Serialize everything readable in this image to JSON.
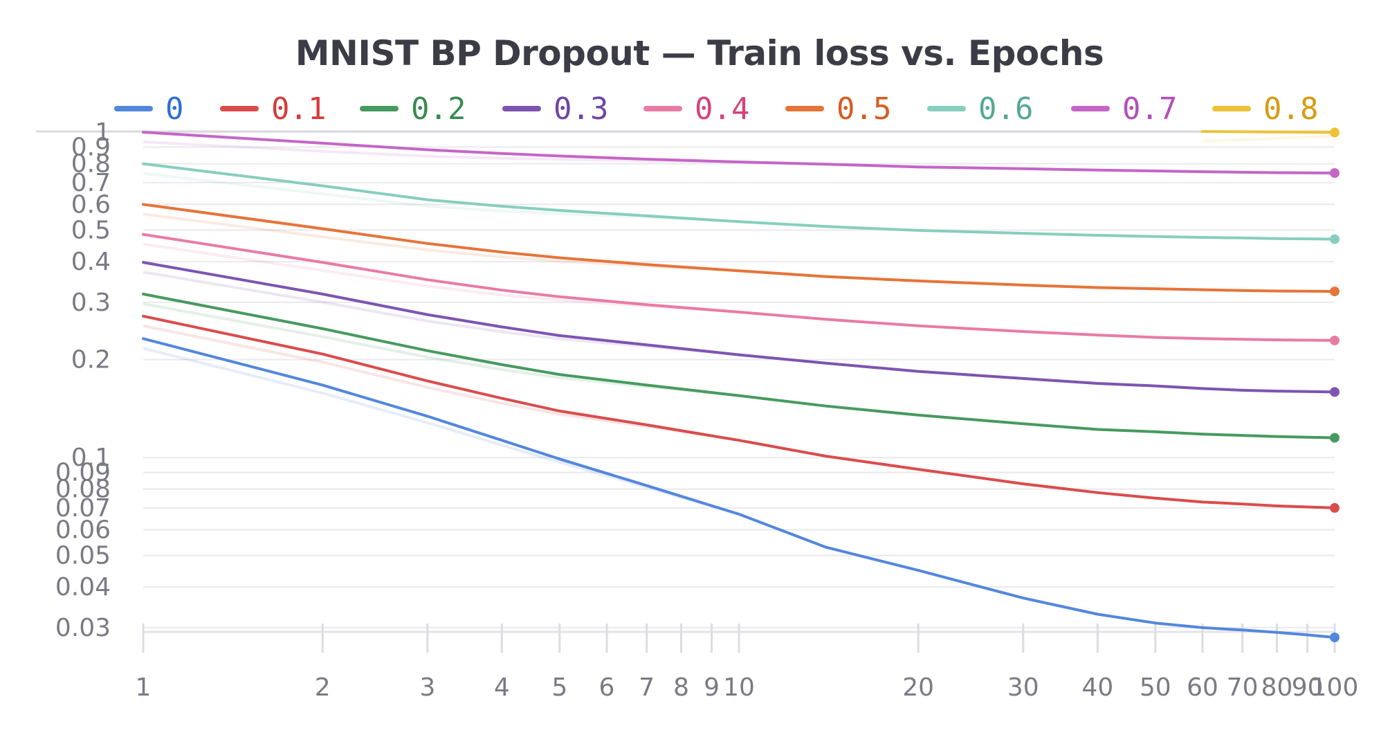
{
  "chart_data": {
    "type": "line",
    "title": "MNIST BP Dropout — Train loss vs. Epochs",
    "xlabel": "",
    "ylabel": "",
    "x_scale": "log",
    "y_scale": "log",
    "xlim": [
      1,
      100
    ],
    "ylim": [
      0.028,
      1.0
    ],
    "legend_position": "top",
    "grid": true,
    "x_ticks": [
      {
        "value": 1,
        "label": "1"
      },
      {
        "value": 2,
        "label": "2"
      },
      {
        "value": 3,
        "label": "3"
      },
      {
        "value": 4,
        "label": "4"
      },
      {
        "value": 5,
        "label": "5"
      },
      {
        "value": 6,
        "label": "6"
      },
      {
        "value": 7,
        "label": "7"
      },
      {
        "value": 8,
        "label": "8"
      },
      {
        "value": 9,
        "label": "9"
      },
      {
        "value": 10,
        "label": "10"
      },
      {
        "value": 20,
        "label": "20"
      },
      {
        "value": 30,
        "label": "30"
      },
      {
        "value": 40,
        "label": "40"
      },
      {
        "value": 50,
        "label": "50"
      },
      {
        "value": 60,
        "label": "60"
      },
      {
        "value": 70,
        "label": "70"
      },
      {
        "value": 80,
        "label": "80"
      },
      {
        "value": 90,
        "label": "90"
      },
      {
        "value": 100,
        "label": "100"
      }
    ],
    "y_ticks": [
      {
        "value": 1,
        "label": "1"
      },
      {
        "value": 0.9,
        "label": "0.9"
      },
      {
        "value": 0.8,
        "label": "0.8"
      },
      {
        "value": 0.7,
        "label": "0.7"
      },
      {
        "value": 0.6,
        "label": "0.6"
      },
      {
        "value": 0.5,
        "label": "0.5"
      },
      {
        "value": 0.4,
        "label": "0.4"
      },
      {
        "value": 0.3,
        "label": "0.3"
      },
      {
        "value": 0.2,
        "label": "0.2"
      },
      {
        "value": 0.1,
        "label": "0.1"
      },
      {
        "value": 0.09,
        "label": "0.09"
      },
      {
        "value": 0.08,
        "label": "0.08"
      },
      {
        "value": 0.07,
        "label": "0.07"
      },
      {
        "value": 0.06,
        "label": "0.06"
      },
      {
        "value": 0.05,
        "label": "0.05"
      },
      {
        "value": 0.04,
        "label": "0.04"
      },
      {
        "value": 0.03,
        "label": "0.03"
      }
    ],
    "x": [
      1,
      2,
      3,
      4,
      5,
      7,
      10,
      14,
      20,
      30,
      40,
      50,
      60,
      70,
      80,
      90,
      100
    ],
    "series": [
      {
        "name": "0",
        "color": "#5387dd",
        "values": [
          0.232,
          0.167,
          0.134,
          0.113,
          0.099,
          0.082,
          0.067,
          0.053,
          0.045,
          0.037,
          0.033,
          0.031,
          0.03,
          0.0295,
          0.029,
          0.0285,
          0.028
        ]
      },
      {
        "name": "0.1",
        "color": "#da4c4c",
        "values": [
          0.272,
          0.208,
          0.172,
          0.152,
          0.139,
          0.126,
          0.113,
          0.101,
          0.092,
          0.083,
          0.078,
          0.075,
          0.073,
          0.072,
          0.071,
          0.0705,
          0.07
        ]
      },
      {
        "name": "0.2",
        "color": "#479a5f",
        "values": [
          0.318,
          0.249,
          0.213,
          0.193,
          0.18,
          0.167,
          0.155,
          0.144,
          0.135,
          0.127,
          0.122,
          0.12,
          0.118,
          0.117,
          0.116,
          0.1155,
          0.115
        ]
      },
      {
        "name": "0.3",
        "color": "#7d54b2",
        "values": [
          0.398,
          0.318,
          0.275,
          0.252,
          0.237,
          0.222,
          0.207,
          0.195,
          0.184,
          0.175,
          0.169,
          0.166,
          0.163,
          0.161,
          0.16,
          0.1595,
          0.159
        ]
      },
      {
        "name": "0.4",
        "color": "#e87ba4",
        "values": [
          0.485,
          0.398,
          0.352,
          0.327,
          0.312,
          0.295,
          0.28,
          0.266,
          0.254,
          0.244,
          0.238,
          0.234,
          0.232,
          0.231,
          0.23,
          0.2295,
          0.229
        ]
      },
      {
        "name": "0.5",
        "color": "#e57439",
        "values": [
          0.6,
          0.505,
          0.455,
          0.428,
          0.411,
          0.392,
          0.375,
          0.36,
          0.349,
          0.339,
          0.333,
          0.33,
          0.328,
          0.326,
          0.325,
          0.3245,
          0.324
        ]
      },
      {
        "name": "0.6",
        "color": "#87cebf",
        "values": [
          0.8,
          0.684,
          0.62,
          0.592,
          0.575,
          0.553,
          0.531,
          0.513,
          0.499,
          0.489,
          0.482,
          0.478,
          0.475,
          0.473,
          0.471,
          0.47,
          0.469
        ]
      },
      {
        "name": "0.7",
        "color": "#c565c7",
        "values": [
          1.0,
          0.925,
          0.883,
          0.86,
          0.845,
          0.826,
          0.81,
          0.797,
          0.782,
          0.772,
          0.765,
          0.76,
          0.756,
          0.753,
          0.751,
          0.75,
          0.749
        ]
      },
      {
        "name": "0.8",
        "color": "#efc236",
        "values": [
          null,
          null,
          null,
          null,
          null,
          null,
          null,
          null,
          null,
          null,
          null,
          null,
          1.005,
          1.003,
          1.001,
          1.0,
          0.998
        ]
      }
    ],
    "label_colors": [
      "#2f6fd6",
      "#d63b3b",
      "#3a8a52",
      "#6f45a8",
      "#d6427a",
      "#d85b1f",
      "#55a896",
      "#b44fb8",
      "#d99a10"
    ]
  }
}
